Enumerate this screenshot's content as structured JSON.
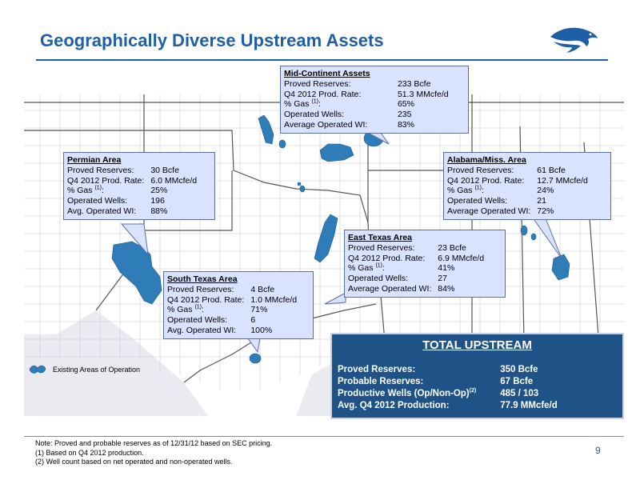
{
  "title": "Geographically Diverse Upstream Assets",
  "logo_icon": "eagle-logo-icon",
  "callouts": {
    "mid_continent": {
      "heading": "Mid-Continent Assets",
      "rows": [
        {
          "label": "Proved Reserves:",
          "sup": "",
          "value": "233 Bcfe"
        },
        {
          "label": "Q4 2012 Prod. Rate:",
          "sup": "",
          "value": "51.3 MMcfe/d"
        },
        {
          "label": "% Gas",
          "sup": "(1)",
          "value": "65%"
        },
        {
          "label": "Operated Wells:",
          "sup": "",
          "value": "235"
        },
        {
          "label": "Average Operated WI:",
          "sup": "",
          "value": "83%"
        }
      ]
    },
    "permian": {
      "heading": "Permian Area",
      "rows": [
        {
          "label": "Proved Reserves:",
          "sup": "",
          "value": "30 Bcfe"
        },
        {
          "label": "Q4 2012 Prod. Rate:",
          "sup": "",
          "value": "6.0 MMcfe/d"
        },
        {
          "label": "% Gas",
          "sup": "(1)",
          "value": "25%"
        },
        {
          "label": "Operated Wells:",
          "sup": "",
          "value": "196"
        },
        {
          "label": "Avg. Operated WI:",
          "sup": "",
          "value": "88%"
        }
      ]
    },
    "alabama": {
      "heading": "Alabama/Miss. Area",
      "rows": [
        {
          "label": "Proved Reserves:",
          "sup": "",
          "value": "61 Bcfe"
        },
        {
          "label": "Q4 2012 Prod. Rate:",
          "sup": "",
          "value": "12.7 MMcfe/d"
        },
        {
          "label": "% Gas",
          "sup": "(1)",
          "value": "24%"
        },
        {
          "label": "Operated Wells:",
          "sup": "",
          "value": "21"
        },
        {
          "label": "Average Operated WI:",
          "sup": "",
          "value": "72%"
        }
      ]
    },
    "east_texas": {
      "heading": "East Texas Area",
      "rows": [
        {
          "label": "Proved Reserves:",
          "sup": "",
          "value": "23 Bcfe"
        },
        {
          "label": "Q4 2012 Prod. Rate:",
          "sup": "",
          "value": "6.9 MMcfe/d"
        },
        {
          "label": "% Gas",
          "sup": "(1)",
          "value": "41%"
        },
        {
          "label": "Operated Wells:",
          "sup": "",
          "value": "27"
        },
        {
          "label": "Average Operated WI:",
          "sup": "",
          "value": "84%"
        }
      ]
    },
    "south_texas": {
      "heading": "South Texas Area",
      "rows": [
        {
          "label": "Proved Reserves:",
          "sup": "",
          "value": "4 Bcfe"
        },
        {
          "label": "Q4 2012 Prod. Rate:",
          "sup": "",
          "value": "1.0 MMcfe/d"
        },
        {
          "label": "% Gas",
          "sup": "(1)",
          "value": "71%"
        },
        {
          "label": "Operated Wells:",
          "sup": "",
          "value": "6"
        },
        {
          "label": "Avg. Operated WI:",
          "sup": "",
          "value": "100%"
        }
      ]
    }
  },
  "total": {
    "heading": "TOTAL  UPSTREAM",
    "rows": [
      {
        "label": "Proved Reserves:",
        "sup": "",
        "value": "350 Bcfe"
      },
      {
        "label": "Probable Reserves:",
        "sup": "",
        "value": "67 Bcfe"
      },
      {
        "label": "Productive Wells (Op/Non-Op)",
        "sup": "(2)",
        "value": "485 / 103"
      },
      {
        "label": "Avg. Q4 2012 Production:",
        "sup": "",
        "value": "77.9 MMcfe/d"
      }
    ]
  },
  "legend": {
    "label": "Existing Areas of Operation",
    "icon": "operation-area-swatch-icon"
  },
  "notes": [
    "Note:  Proved and probable reserves as of 12/31/12 based on SEC pricing.",
    "(1)   Based on Q4 2012 production.",
    "(2)   Well count based on net operated and non-operated wells."
  ],
  "page_number": "9",
  "colors": {
    "title": "#1f5fa5",
    "callout_bg": "#d9e3ff",
    "total_bg": "#1f5388",
    "area_fill": "#2f7db8"
  }
}
